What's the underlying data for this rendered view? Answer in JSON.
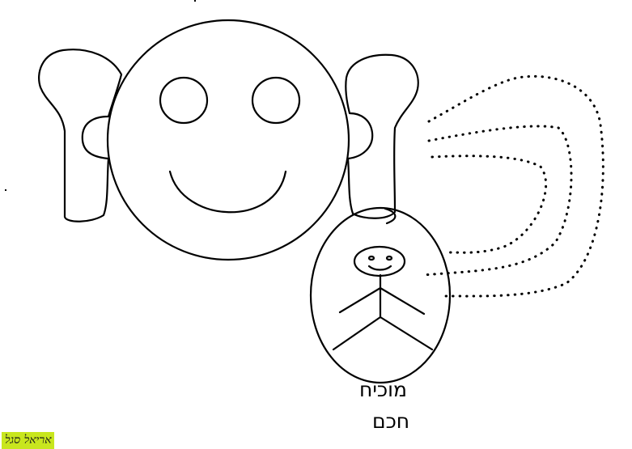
{
  "caption": {
    "line1": "מוכיח",
    "line2": "חכם"
  },
  "signature": "אריאל סגל",
  "colors": {
    "stroke": "#000000",
    "background": "#ffffff",
    "signature_bg": "#c8e61e"
  }
}
